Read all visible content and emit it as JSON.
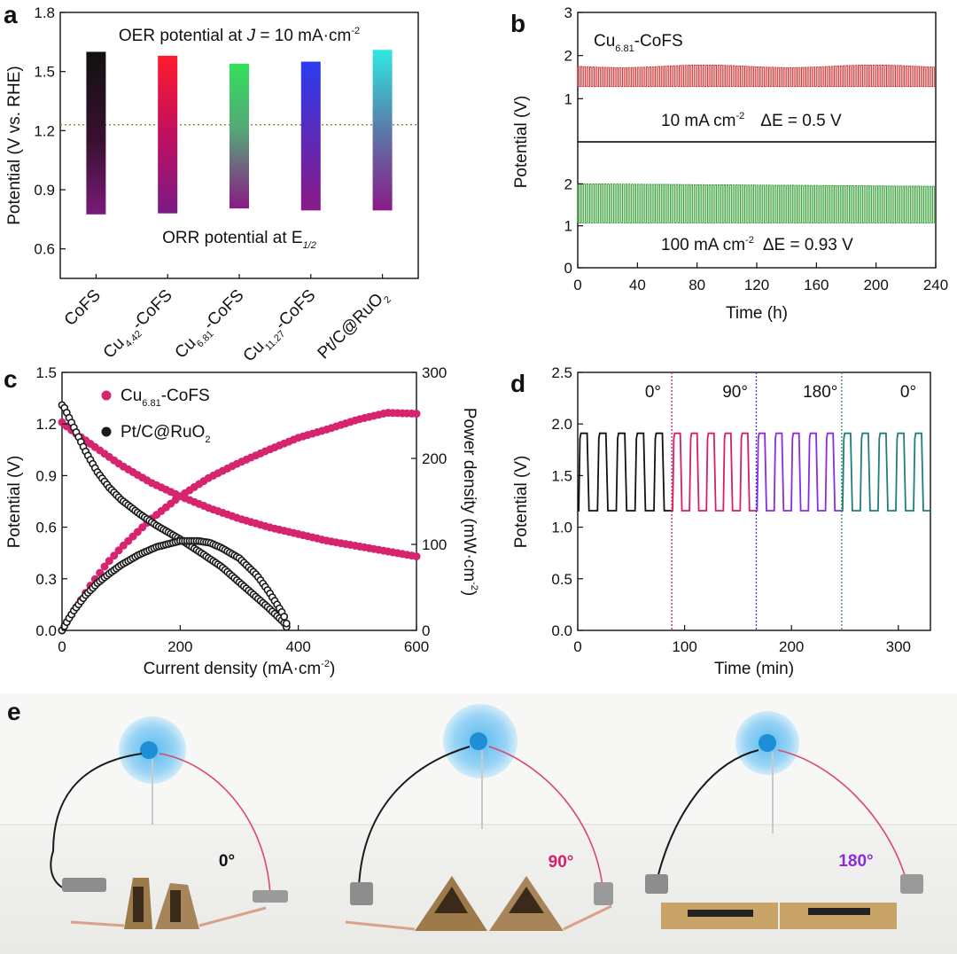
{
  "figure": {
    "panel_labels": {
      "a": "a",
      "b": "b",
      "c": "c",
      "d": "d",
      "e": "e"
    }
  },
  "colors": {
    "cofs": "#1a1a1a",
    "cu442": "#ff1a2e",
    "cu681": "#33e05a",
    "cu1127": "#2a3cf0",
    "ptc": "#2fe8e0",
    "orr": "#8a1a86",
    "oer_line": "#8c7a3a",
    "b_top": "#cc2b2b",
    "b_bottom": "#2e9a2e",
    "c_cu": "#d6246f",
    "c_pt": "#1a1a1a",
    "d_0": "#111111",
    "d_90": "#d61f6a",
    "d_180": "#8a2be2",
    "d_0b": "#1f7f7a",
    "d_sep_1": "#d61f6a",
    "d_sep_2": "#3838cc",
    "d_sep_3": "#2e8a5a"
  },
  "chart_data": [
    {
      "id": "a",
      "type": "bar",
      "title_parts": {
        "prefix": "OER potential at ",
        "j": "J",
        "eq": " = 10 mA·cm",
        "sup": "-2"
      },
      "bottom_parts": {
        "prefix": "ORR potential at E",
        "sub": "1/2"
      },
      "ylabel": "Potential (V vs. RHE)",
      "ylim": [
        0.45,
        1.8
      ],
      "yticks": [
        "0.6",
        "0.9",
        "1.2",
        "1.5",
        "1.8"
      ],
      "reference_line": 1.23,
      "categories": [
        {
          "base": "CoFS",
          "sub": "",
          "post": ""
        },
        {
          "base": "Cu",
          "sub": "4.42",
          "post": "-CoFS"
        },
        {
          "base": "Cu",
          "sub": "6.81",
          "post": "-CoFS"
        },
        {
          "base": "Cu",
          "sub": "11.27",
          "post": "-CoFS"
        },
        {
          "base": "Pt/C@RuO",
          "sub": "2",
          "post": ""
        }
      ],
      "oer_values": [
        1.6,
        1.58,
        1.54,
        1.55,
        1.61
      ],
      "orr_values": [
        0.775,
        0.78,
        0.805,
        0.795,
        0.795
      ]
    },
    {
      "id": "b",
      "type": "line",
      "sample": {
        "base": "Cu",
        "sub": "6.81",
        "post": "-CoFS"
      },
      "ylabel": "Potential (V)",
      "xlabel": "Time (h)",
      "xlim": [
        0,
        240
      ],
      "xticks": [
        "0",
        "40",
        "80",
        "120",
        "160",
        "200",
        "240"
      ],
      "top": {
        "ylim": [
          0,
          3
        ],
        "yticks": [
          "1",
          "2",
          "3"
        ],
        "label_parts": {
          "current": "10 mA cm",
          "sup": "-2",
          "delta": "ΔE = 0.5 V"
        },
        "charge_v": 1.75,
        "discharge_v": 1.28,
        "cycles": 120
      },
      "bottom": {
        "ylim": [
          0,
          3
        ],
        "yticks": [
          "0",
          "1",
          "2"
        ],
        "label_parts": {
          "current": "100 mA cm",
          "sup": "-2",
          "delta": "ΔE = 0.93 V"
        },
        "charge_v": 2.0,
        "discharge_v": 1.07,
        "cycles": 120
      }
    },
    {
      "id": "c",
      "type": "scatter",
      "xlabel": "Current density (mA·cm",
      "xlabel_sup": "-2",
      "xlabel_end": ")",
      "ylabel": "Potential (V)",
      "y2label": "Power density (mW·cm",
      "y2label_sup": "-2",
      "y2label_end": ")",
      "xlim": [
        0,
        600
      ],
      "ylim": [
        0,
        1.5
      ],
      "y2lim": [
        0,
        300
      ],
      "xticks": [
        "0",
        "200",
        "400",
        "600"
      ],
      "yticks": [
        "0.0",
        "0.3",
        "0.6",
        "0.9",
        "1.2",
        "1.5"
      ],
      "y2ticks": [
        "0",
        "100",
        "200",
        "300"
      ],
      "legend": [
        {
          "base": "Cu",
          "sub": "6.81",
          "post": "-CoFS"
        },
        {
          "base": "Pt/C@RuO",
          "sub": "2",
          "post": ""
        }
      ],
      "series": [
        {
          "name": "Cu6.81-CoFS polarization",
          "x": [
            0,
            10,
            25,
            50,
            75,
            100,
            150,
            200,
            250,
            300,
            350,
            400,
            450,
            500,
            550,
            600
          ],
          "y": [
            1.21,
            1.18,
            1.14,
            1.08,
            1.02,
            0.96,
            0.86,
            0.78,
            0.71,
            0.65,
            0.6,
            0.56,
            0.52,
            0.49,
            0.46,
            0.43
          ]
        },
        {
          "name": "Cu6.81-CoFS power",
          "x": [
            0,
            10,
            25,
            50,
            75,
            100,
            150,
            200,
            250,
            300,
            350,
            400,
            450,
            500,
            550,
            600
          ],
          "y": [
            0,
            12,
            28,
            54,
            77,
            96,
            129,
            156,
            178,
            195,
            210,
            224,
            234,
            245,
            253,
            252
          ]
        },
        {
          "name": "Pt/C@RuO2 polarization",
          "x": [
            0,
            5,
            10,
            20,
            40,
            60,
            80,
            100,
            130,
            160,
            200,
            240,
            270,
            300,
            330,
            350,
            365,
            375,
            380
          ],
          "y": [
            1.31,
            1.29,
            1.25,
            1.18,
            1.04,
            0.92,
            0.83,
            0.76,
            0.68,
            0.61,
            0.53,
            0.44,
            0.37,
            0.28,
            0.19,
            0.13,
            0.08,
            0.05,
            0.02
          ]
        },
        {
          "name": "Pt/C@RuO2 power",
          "x": [
            0,
            10,
            20,
            40,
            60,
            80,
            100,
            130,
            160,
            200,
            230,
            250,
            270,
            300,
            330,
            350,
            365,
            375,
            380
          ],
          "y": [
            0,
            12,
            23,
            41,
            55,
            66,
            76,
            88,
            97,
            104,
            104,
            102,
            96,
            84,
            64,
            45,
            29,
            18,
            8
          ]
        }
      ]
    },
    {
      "id": "d",
      "type": "line",
      "xlabel": "Time (min)",
      "ylabel": "Potential (V)",
      "xlim": [
        0,
        330
      ],
      "ylim": [
        0,
        2.5
      ],
      "xticks": [
        "0",
        "100",
        "200",
        "300"
      ],
      "yticks": [
        "0.0",
        "0.5",
        "1.0",
        "1.5",
        "2.0",
        "2.5"
      ],
      "charge_v": 1.91,
      "discharge_v": 1.16,
      "segments": [
        {
          "label": "0°",
          "start": 0,
          "end": 88,
          "cycles": 5
        },
        {
          "label": "90°",
          "start": 88,
          "end": 167,
          "cycles": 5
        },
        {
          "label": "180°",
          "start": 167,
          "end": 247,
          "cycles": 5
        },
        {
          "label": "0°",
          "start": 247,
          "end": 330,
          "cycles": 5
        }
      ],
      "separators": [
        88,
        167,
        247
      ]
    }
  ],
  "photos": [
    {
      "angle_label": "0°"
    },
    {
      "angle_label": "90°"
    },
    {
      "angle_label": "180°"
    }
  ]
}
